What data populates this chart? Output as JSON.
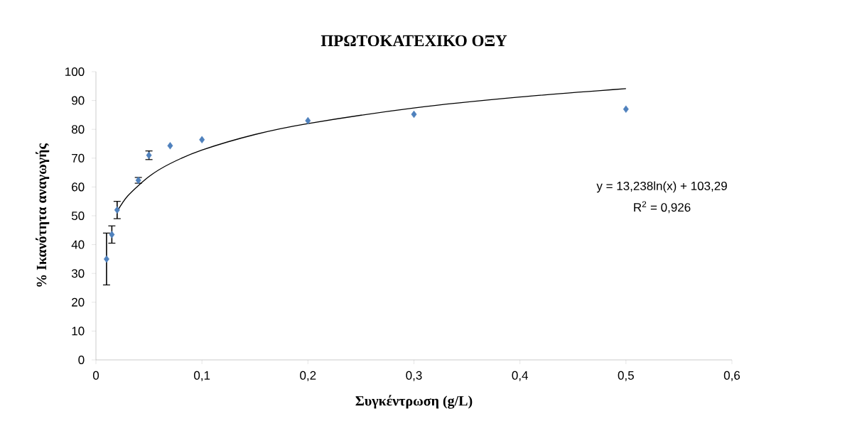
{
  "chart_data": {
    "type": "scatter",
    "title": "ΠΡΩΤΟΚΑΤΕΧΙΚΟ ΟΞΥ",
    "xlabel": "Συγκέντρωση (g/L)",
    "ylabel": "% Ικανότητα αναγωγής",
    "x": [
      0.01,
      0.015,
      0.02,
      0.04,
      0.05,
      0.07,
      0.1,
      0.2,
      0.3,
      0.5
    ],
    "series": [
      {
        "color": "#4f81bd",
        "marker": "diamond",
        "values": [
          35,
          43.5,
          52,
          62.3,
          71,
          74.3,
          76.4,
          83,
          85.2,
          87
        ],
        "errors": [
          9,
          3,
          3,
          1,
          1.5,
          null,
          null,
          null,
          null,
          null
        ]
      },
      {
        "type": "line",
        "color": "#000000",
        "x": [
          0.02,
          0.03,
          0.05,
          0.07,
          0.1,
          0.15,
          0.2,
          0.3,
          0.4,
          0.5
        ],
        "values": [
          51.5,
          56.9,
          63.6,
          68.1,
          72.8,
          78.2,
          82,
          87.4,
          91.2,
          94.1
        ]
      }
    ],
    "xlim": [
      0,
      0.6
    ],
    "ylim": [
      0,
      100
    ],
    "xticks": [
      0,
      {
        "value": 0.1,
        "label": "0,1"
      },
      {
        "value": 0.2,
        "label": "0,2"
      },
      {
        "value": 0.3,
        "label": "0,3"
      },
      {
        "value": 0.4,
        "label": "0,4"
      },
      {
        "value": 0.5,
        "label": "0,5"
      },
      {
        "value": 0.6,
        "label": "0,6"
      }
    ],
    "yticks": [
      0,
      10,
      20,
      30,
      40,
      50,
      60,
      70,
      80,
      90,
      100
    ],
    "annotations": [
      "y = 13,238ln(x) + 103,29",
      "R$^{2}$ = 0,926"
    ]
  }
}
